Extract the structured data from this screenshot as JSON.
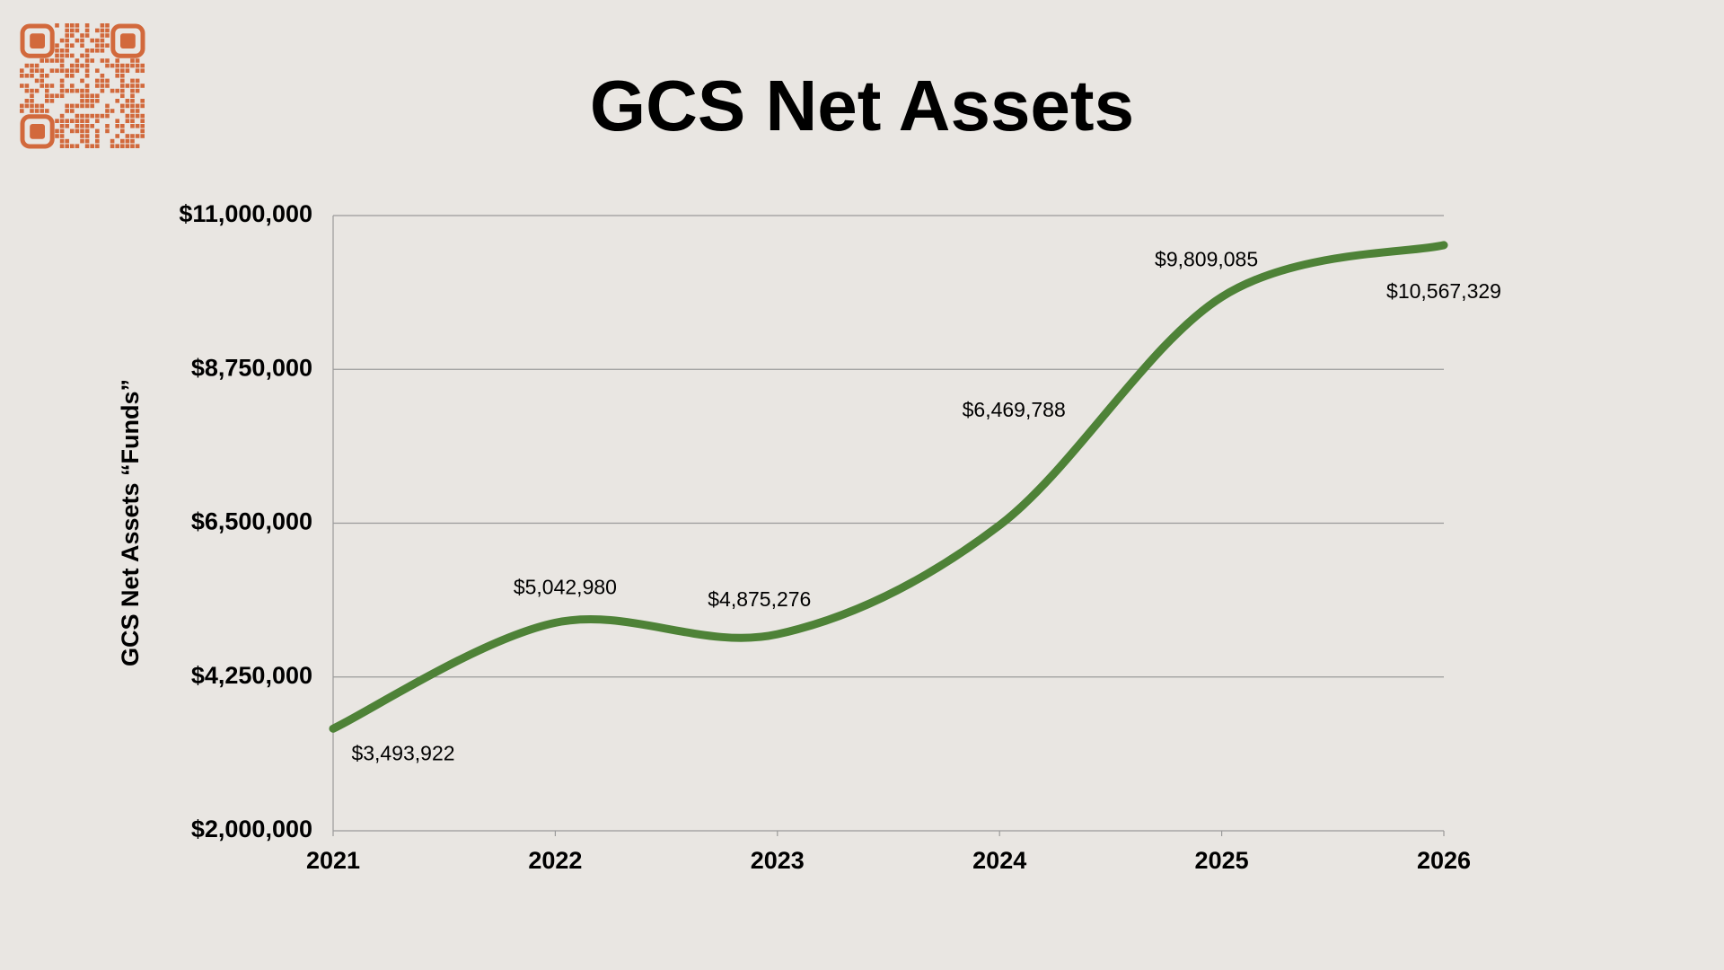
{
  "chart_data": {
    "type": "line",
    "title": "GCS Net Assets",
    "y_label": "GCS Net Assets “Funds”",
    "x": [
      2021,
      2022,
      2023,
      2024,
      2025,
      2026
    ],
    "xlim": [
      2021,
      2026
    ],
    "xticks": [
      2021,
      2022,
      2023,
      2024,
      2025,
      2026
    ],
    "values": [
      3493922,
      5042980,
      4875276,
      6469788,
      9809085,
      10567329
    ],
    "value_labels": [
      "$3,493,922",
      "$5,042,980",
      "$4,875,276",
      "$6,469,788",
      "$9,809,085",
      "$10,567,329"
    ],
    "color": "#4e8237",
    "ylim": [
      2000000,
      11000000
    ],
    "yticks": [
      {
        "value": 2000000,
        "label": "$2,000,000"
      },
      {
        "value": 4250000,
        "label": "$4,250,000"
      },
      {
        "value": 6500000,
        "label": "$6,500,000"
      },
      {
        "value": 8750000,
        "label": "$8,750,000"
      },
      {
        "value": 11000000,
        "label": "$11,000,000"
      }
    ],
    "grid": true
  }
}
